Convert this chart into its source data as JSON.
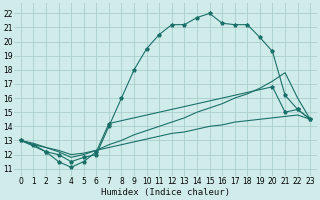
{
  "xlabel": "Humidex (Indice chaleur)",
  "bg_color": "#d0ecea",
  "grid_color": "#aacfcc",
  "line_color": "#1a7068",
  "xlim": [
    -0.5,
    23.5
  ],
  "ylim": [
    10.5,
    22.7
  ],
  "yticks": [
    11,
    12,
    13,
    14,
    15,
    16,
    17,
    18,
    19,
    20,
    21,
    22
  ],
  "xticks": [
    0,
    1,
    2,
    3,
    4,
    5,
    6,
    7,
    8,
    9,
    10,
    11,
    12,
    13,
    14,
    15,
    16,
    17,
    18,
    19,
    20,
    21,
    22,
    23
  ],
  "line1_x": [
    0,
    1,
    2,
    3,
    4,
    5,
    6,
    7,
    8,
    9,
    10,
    11,
    12,
    13,
    14,
    15,
    16,
    17,
    18,
    19,
    20,
    21,
    22,
    23
  ],
  "line1_y": [
    13.0,
    12.7,
    12.2,
    12.0,
    11.5,
    11.8,
    12.0,
    14.0,
    16.0,
    18.0,
    19.5,
    20.5,
    21.2,
    21.2,
    21.7,
    22.0,
    21.3,
    21.2,
    21.2,
    20.3,
    19.3,
    16.2,
    15.2,
    14.5
  ],
  "line2_x": [
    0,
    1,
    2,
    3,
    4,
    5,
    6,
    7,
    8,
    9,
    10,
    11,
    12,
    13,
    14,
    15,
    16,
    17,
    18,
    19,
    20,
    21,
    22,
    23
  ],
  "line2_y": [
    13.0,
    12.7,
    12.5,
    12.2,
    11.8,
    12.0,
    12.3,
    12.7,
    13.0,
    13.4,
    13.7,
    14.0,
    14.3,
    14.6,
    15.0,
    15.3,
    15.6,
    16.0,
    16.3,
    16.7,
    17.2,
    17.8,
    16.0,
    14.5
  ],
  "line3_x": [
    0,
    1,
    2,
    3,
    4,
    5,
    6,
    7,
    8,
    9,
    10,
    11,
    12,
    13,
    14,
    15,
    16,
    17,
    18,
    19,
    20,
    21,
    22,
    23
  ],
  "line3_y": [
    13.0,
    12.8,
    12.5,
    12.3,
    12.0,
    12.1,
    12.3,
    12.5,
    12.7,
    12.9,
    13.1,
    13.3,
    13.5,
    13.6,
    13.8,
    14.0,
    14.1,
    14.3,
    14.4,
    14.5,
    14.6,
    14.7,
    14.8,
    14.5
  ],
  "line4_x": [
    0,
    2,
    3,
    4,
    5,
    6,
    7,
    20,
    21,
    22,
    23
  ],
  "line4_y": [
    13.0,
    12.2,
    11.5,
    11.1,
    11.5,
    12.2,
    14.2,
    16.8,
    15.0,
    15.2,
    14.5
  ],
  "marker_x1": [
    0,
    2,
    3,
    4,
    5,
    6,
    7,
    9,
    10,
    11,
    12,
    13,
    14,
    15,
    16,
    17,
    18,
    19,
    20,
    21,
    22,
    23
  ],
  "marker_y1": [
    13.0,
    12.2,
    12.0,
    11.5,
    11.8,
    12.0,
    14.0,
    18.0,
    19.5,
    20.5,
    21.2,
    21.2,
    21.7,
    22.0,
    21.3,
    21.2,
    21.2,
    20.3,
    19.3,
    16.2,
    15.2,
    14.5
  ]
}
